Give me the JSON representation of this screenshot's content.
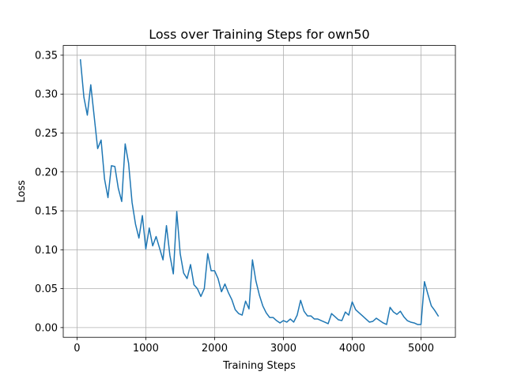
{
  "chart_data": {
    "type": "line",
    "title": "Loss over Training Steps for own50",
    "xlabel": "Training Steps",
    "ylabel": "Loss",
    "xlim": [
      -200,
      5500
    ],
    "ylim": [
      -0.0125,
      0.3625
    ],
    "xticks": [
      0,
      1000,
      2000,
      3000,
      4000,
      5000
    ],
    "yticks": [
      0.0,
      0.05,
      0.1,
      0.15,
      0.2,
      0.25,
      0.3,
      0.35
    ],
    "grid": true,
    "line_color": "#1f77b4",
    "series": [
      {
        "x": [
          50,
          100,
          150,
          200,
          250,
          300,
          350,
          400,
          450,
          500,
          550,
          600,
          650,
          700,
          750,
          800,
          850,
          900,
          950,
          1000,
          1050,
          1100,
          1150,
          1200,
          1250,
          1300,
          1350,
          1400,
          1450,
          1500,
          1550,
          1600,
          1650,
          1700,
          1750,
          1800,
          1850,
          1900,
          1950,
          2000,
          2050,
          2100,
          2150,
          2200,
          2250,
          2300,
          2350,
          2400,
          2450,
          2500,
          2550,
          2600,
          2650,
          2700,
          2750,
          2800,
          2850,
          2900,
          2950,
          3000,
          3050,
          3100,
          3150,
          3200,
          3250,
          3300,
          3350,
          3400,
          3450,
          3500,
          3550,
          3600,
          3650,
          3700,
          3750,
          3800,
          3850,
          3900,
          3950,
          4000,
          4050,
          4100,
          4150,
          4200,
          4250,
          4300,
          4350,
          4400,
          4450,
          4500,
          4550,
          4600,
          4650,
          4700,
          4750,
          4800,
          4850,
          4900,
          4950,
          5000,
          5050,
          5100,
          5150,
          5200,
          5250
        ],
        "y": [
          0.344,
          0.296,
          0.273,
          0.312,
          0.271,
          0.23,
          0.241,
          0.191,
          0.167,
          0.208,
          0.207,
          0.179,
          0.162,
          0.236,
          0.211,
          0.161,
          0.133,
          0.115,
          0.144,
          0.101,
          0.128,
          0.105,
          0.117,
          0.102,
          0.087,
          0.131,
          0.093,
          0.069,
          0.149,
          0.095,
          0.07,
          0.063,
          0.081,
          0.055,
          0.05,
          0.04,
          0.05,
          0.095,
          0.073,
          0.073,
          0.063,
          0.046,
          0.056,
          0.045,
          0.036,
          0.023,
          0.018,
          0.016,
          0.034,
          0.024,
          0.087,
          0.06,
          0.042,
          0.028,
          0.019,
          0.013,
          0.013,
          0.009,
          0.006,
          0.009,
          0.007,
          0.011,
          0.007,
          0.016,
          0.035,
          0.021,
          0.015,
          0.015,
          0.011,
          0.011,
          0.009,
          0.007,
          0.005,
          0.018,
          0.014,
          0.01,
          0.009,
          0.02,
          0.016,
          0.033,
          0.023,
          0.019,
          0.015,
          0.011,
          0.007,
          0.008,
          0.012,
          0.009,
          0.006,
          0.004,
          0.026,
          0.02,
          0.017,
          0.021,
          0.014,
          0.009,
          0.007,
          0.006,
          0.004,
          0.004,
          0.059,
          0.043,
          0.028,
          0.022,
          0.015
        ]
      }
    ]
  }
}
